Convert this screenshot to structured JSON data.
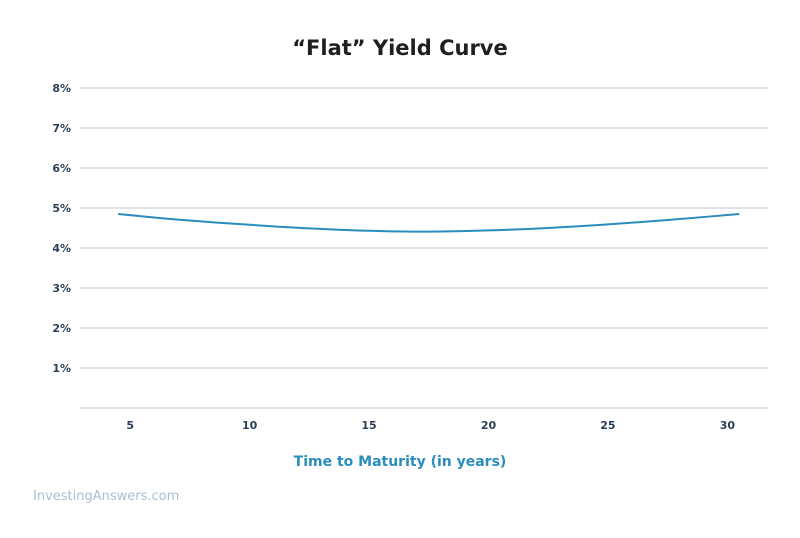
{
  "chart_data": {
    "type": "line",
    "title": "“Flat” Yield Curve",
    "xlabel": "Time to Maturity (in years)",
    "ylabel": "",
    "x_ticks": [
      5,
      10,
      15,
      20,
      25,
      30
    ],
    "y_ticks": [
      1,
      2,
      3,
      4,
      5,
      6,
      7,
      8
    ],
    "y_tick_labels": [
      "1%",
      "2%",
      "3%",
      "4%",
      "5%",
      "6%",
      "7%",
      "8%"
    ],
    "xlim": [
      2.9,
      31.7
    ],
    "ylim": [
      0,
      8
    ],
    "grid": "horizontal",
    "series": [
      {
        "x": [
          4.5,
          7,
          10,
          12.5,
          15,
          17.5,
          20,
          22.5,
          25,
          27.5,
          30.5
        ],
        "values": [
          4.85,
          4.71,
          4.58,
          4.49,
          4.43,
          4.41,
          4.44,
          4.5,
          4.59,
          4.7,
          4.85
        ]
      }
    ]
  },
  "colors": {
    "line": "#2a8dbb",
    "grid": "#b7c6d6",
    "title": "#1f1f1f",
    "tick": "#2b3f55",
    "xlabel": "#2a8dbb",
    "watermark": "#a9bfd2"
  },
  "watermark": "InvestingAnswers.com"
}
